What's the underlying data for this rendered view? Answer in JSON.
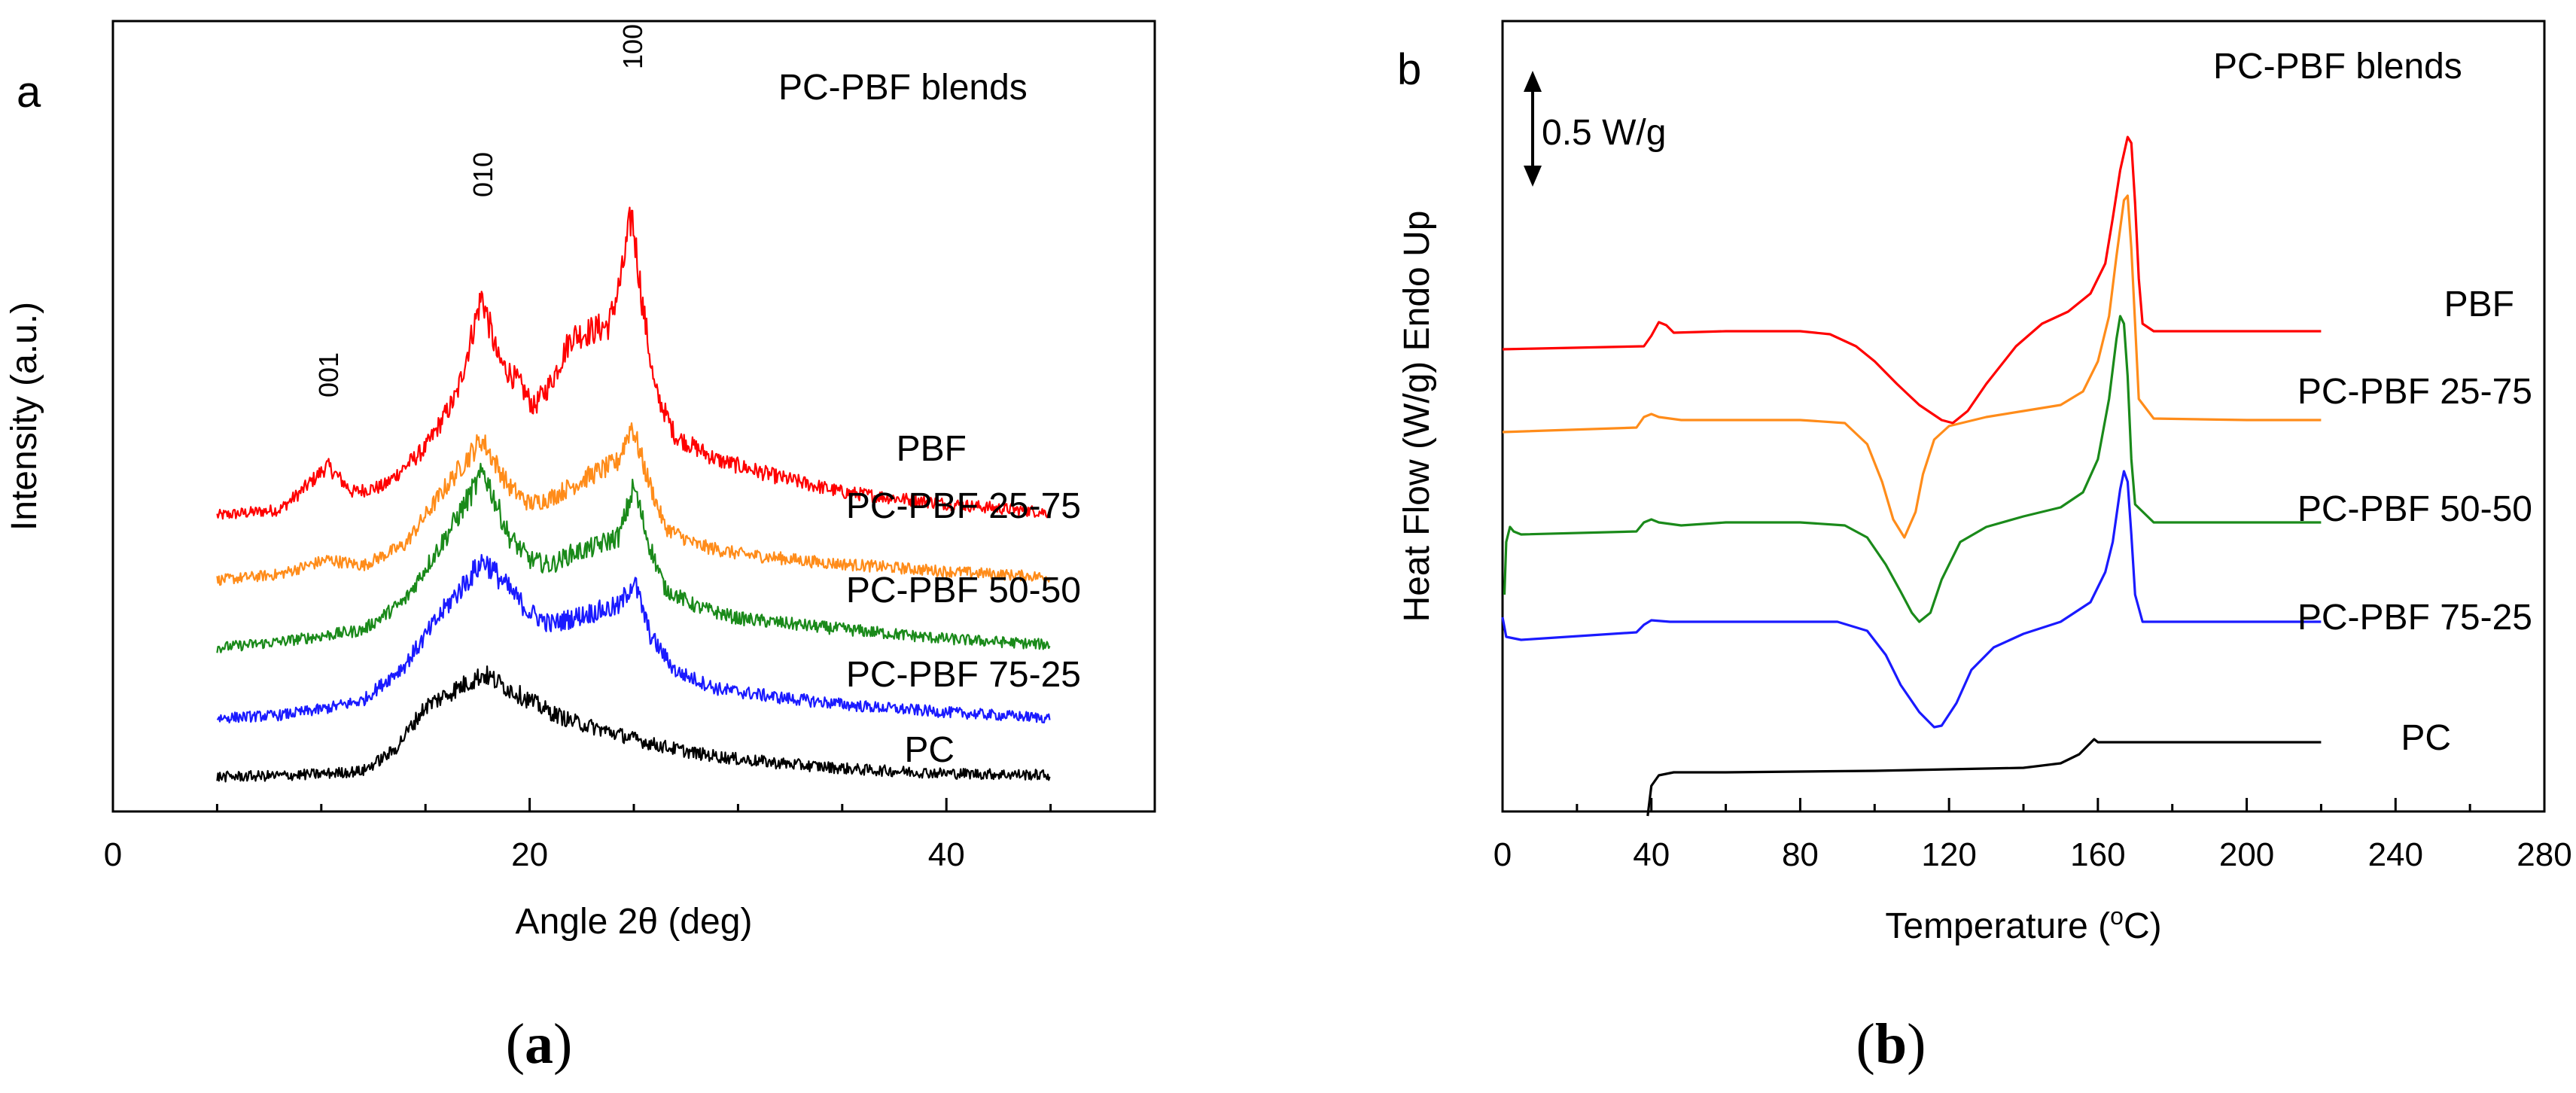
{
  "chart_data": [
    {
      "type": "line",
      "panel_letter": "a",
      "caption": {
        "open": "(",
        "letter": "a",
        "close": ")"
      },
      "title": "PC-PBF blends",
      "xlabel": "Angle 2θ (deg)",
      "ylabel": "Intensity (a.u.)",
      "xlim": [
        0,
        50
      ],
      "xticks": [
        0,
        20,
        40
      ],
      "y_ticks_shown": false,
      "grid": false,
      "offset_stacked": true,
      "peak_labels": [
        {
          "text": "001",
          "x": 10.3
        },
        {
          "text": "010",
          "x": 17.7
        },
        {
          "text": "100",
          "x": 24.9
        }
      ],
      "series": [
        {
          "name": "PBF",
          "color": "#ff0000",
          "offset": 4.3,
          "x": [
            5,
            8,
            9,
            10.3,
            11.5,
            13,
            15,
            16.5,
            17.7,
            18.5,
            19.5,
            20.2,
            21,
            22,
            23,
            23.8,
            24.4,
            24.9,
            25.4,
            26,
            27,
            29,
            32,
            35,
            40,
            45
          ],
          "y": [
            0.15,
            0.25,
            0.55,
            1.0,
            0.55,
            0.65,
            1.3,
            2.2,
            3.9,
            2.8,
            2.4,
            2.0,
            2.4,
            3.2,
            3.3,
            3.4,
            4.2,
            5.3,
            3.8,
            2.3,
            1.5,
            1.1,
            0.8,
            0.55,
            0.35,
            0.2
          ]
        },
        {
          "name": "PC-PBF 25-75",
          "color": "#ff8c1a",
          "offset": 3.35,
          "x": [
            5,
            8,
            10.3,
            12,
            14,
            16,
            17.7,
            19,
            20,
            21,
            22,
            23,
            24.2,
            24.9,
            25.6,
            26.5,
            28,
            30,
            34,
            40,
            45
          ],
          "y": [
            0.0,
            0.1,
            0.35,
            0.25,
            0.6,
            1.6,
            2.4,
            1.6,
            1.3,
            1.4,
            1.6,
            1.8,
            2.0,
            2.65,
            1.8,
            0.9,
            0.6,
            0.45,
            0.3,
            0.15,
            0.05
          ]
        },
        {
          "name": "PC-PBF 50-50",
          "color": "#1a8a1a",
          "offset": 2.2,
          "x": [
            5,
            8,
            10,
            12,
            14,
            16,
            17.8,
            19,
            20,
            21,
            22,
            23,
            24.3,
            25,
            25.7,
            26.5,
            28,
            30,
            34,
            40,
            45
          ],
          "y": [
            0.0,
            0.1,
            0.2,
            0.3,
            0.8,
            1.9,
            3.0,
            1.9,
            1.5,
            1.4,
            1.6,
            1.7,
            1.9,
            2.75,
            1.8,
            1.0,
            0.7,
            0.5,
            0.35,
            0.15,
            0.05
          ]
        },
        {
          "name": "PC-PBF 75-25",
          "color": "#1a1aff",
          "offset": 1.0,
          "x": [
            5,
            8,
            10,
            12,
            14,
            16,
            17.8,
            19,
            20,
            21,
            22,
            23,
            24.3,
            25,
            25.8,
            27,
            29,
            32,
            36,
            40,
            45
          ],
          "y": [
            0.0,
            0.05,
            0.15,
            0.3,
            0.9,
            1.9,
            2.7,
            2.2,
            1.8,
            1.6,
            1.7,
            1.8,
            1.9,
            2.35,
            1.4,
            0.8,
            0.5,
            0.35,
            0.2,
            0.1,
            0.0
          ]
        },
        {
          "name": "PC",
          "color": "#000000",
          "offset": 0.0,
          "x": [
            5,
            8,
            10,
            12,
            13.5,
            15,
            16.5,
            17.8,
            19,
            20,
            21,
            22,
            24,
            26,
            28,
            30,
            33,
            36,
            40,
            45
          ],
          "y": [
            0.0,
            0.02,
            0.05,
            0.1,
            0.45,
            1.2,
            1.5,
            1.75,
            1.5,
            1.3,
            1.1,
            0.95,
            0.75,
            0.55,
            0.4,
            0.3,
            0.2,
            0.12,
            0.06,
            0.03
          ]
        }
      ]
    },
    {
      "type": "line",
      "panel_letter": "b",
      "caption": {
        "open": "(",
        "letter": "b",
        "close": ")"
      },
      "title": "PC-PBF blends",
      "xlabel": "Temperature (°C)",
      "ylabel": "Heat Flow (W/g) Endo Up",
      "scale_bar_label": "0.5 W/g",
      "xlim": [
        0,
        280
      ],
      "xticks": [
        0,
        40,
        80,
        120,
        160,
        200,
        240,
        280
      ],
      "y_ticks_shown": false,
      "grid": false,
      "series": [
        {
          "name": "PBF",
          "color": "#ff0000",
          "x": [
            0,
            38,
            40,
            42,
            44,
            46,
            60,
            80,
            88,
            95,
            100,
            106,
            112,
            118,
            121,
            125,
            130,
            138,
            145,
            152,
            158,
            162,
            164,
            166,
            168,
            169,
            170,
            171,
            172,
            175,
            190,
            220
          ],
          "y": [
            0.03,
            0.05,
            0.12,
            0.21,
            0.19,
            0.14,
            0.15,
            0.15,
            0.13,
            0.05,
            -0.05,
            -0.2,
            -0.34,
            -0.44,
            -0.46,
            -0.38,
            -0.2,
            0.05,
            0.2,
            0.28,
            0.4,
            0.6,
            0.9,
            1.22,
            1.44,
            1.4,
            1.0,
            0.5,
            0.2,
            0.15,
            0.15,
            0.15
          ]
        },
        {
          "name": "PC-PBF 25-75",
          "color": "#ff8c1a",
          "x": [
            0,
            36,
            38,
            40,
            42,
            48,
            60,
            80,
            92,
            98,
            102,
            105,
            108,
            111,
            113,
            116,
            120,
            130,
            140,
            150,
            156,
            160,
            163,
            165,
            167,
            168,
            169,
            170,
            171,
            175,
            200,
            220
          ],
          "y": [
            -0.52,
            -0.49,
            -0.42,
            -0.4,
            -0.42,
            -0.44,
            -0.44,
            -0.44,
            -0.46,
            -0.6,
            -0.85,
            -1.1,
            -1.22,
            -1.05,
            -0.8,
            -0.57,
            -0.48,
            -0.42,
            -0.38,
            -0.34,
            -0.25,
            -0.05,
            0.25,
            0.65,
            1.02,
            1.05,
            0.7,
            0.2,
            -0.3,
            -0.43,
            -0.44,
            -0.44
          ]
        },
        {
          "name": "PC-PBF 50-50",
          "color": "#1a8a1a",
          "x": [
            0.5,
            1,
            2,
            3,
            5,
            36,
            38,
            40,
            42,
            48,
            60,
            80,
            92,
            98,
            103,
            107,
            110,
            112,
            115,
            118,
            123,
            130,
            140,
            150,
            156,
            160,
            163,
            165,
            166,
            167,
            168,
            169,
            170,
            175,
            200,
            220
          ],
          "y": [
            -1.6,
            -1.25,
            -1.15,
            -1.18,
            -1.2,
            -1.18,
            -1.12,
            -1.1,
            -1.12,
            -1.14,
            -1.12,
            -1.12,
            -1.14,
            -1.22,
            -1.4,
            -1.58,
            -1.72,
            -1.78,
            -1.72,
            -1.5,
            -1.25,
            -1.15,
            -1.08,
            -1.02,
            -0.92,
            -0.7,
            -0.3,
            0.1,
            0.25,
            0.2,
            -0.15,
            -0.7,
            -1.0,
            -1.12,
            -1.12,
            -1.12
          ]
        },
        {
          "name": "PC-PBF 75-25",
          "color": "#1a1aff",
          "x": [
            0,
            1,
            5,
            36,
            38,
            40,
            45,
            60,
            90,
            98,
            103,
            107,
            112,
            116,
            118,
            122,
            126,
            132,
            140,
            150,
            158,
            162,
            164,
            166,
            167,
            168,
            169,
            170,
            172,
            180,
            220
          ],
          "y": [
            -1.75,
            -1.88,
            -1.9,
            -1.85,
            -1.8,
            -1.77,
            -1.78,
            -1.78,
            -1.78,
            -1.84,
            -2.0,
            -2.2,
            -2.38,
            -2.48,
            -2.47,
            -2.32,
            -2.1,
            -1.95,
            -1.86,
            -1.78,
            -1.65,
            -1.45,
            -1.25,
            -0.9,
            -0.78,
            -0.85,
            -1.2,
            -1.6,
            -1.78,
            -1.78,
            -1.78
          ]
        },
        {
          "name": "PC",
          "color": "#000000",
          "x": [
            39,
            40,
            42,
            46,
            60,
            100,
            140,
            150,
            155,
            157,
            159,
            160,
            165,
            200,
            220
          ],
          "y": [
            -3.07,
            -2.87,
            -2.8,
            -2.78,
            -2.78,
            -2.77,
            -2.75,
            -2.72,
            -2.66,
            -2.61,
            -2.56,
            -2.58,
            -2.58,
            -2.58,
            -2.58
          ]
        }
      ]
    }
  ]
}
